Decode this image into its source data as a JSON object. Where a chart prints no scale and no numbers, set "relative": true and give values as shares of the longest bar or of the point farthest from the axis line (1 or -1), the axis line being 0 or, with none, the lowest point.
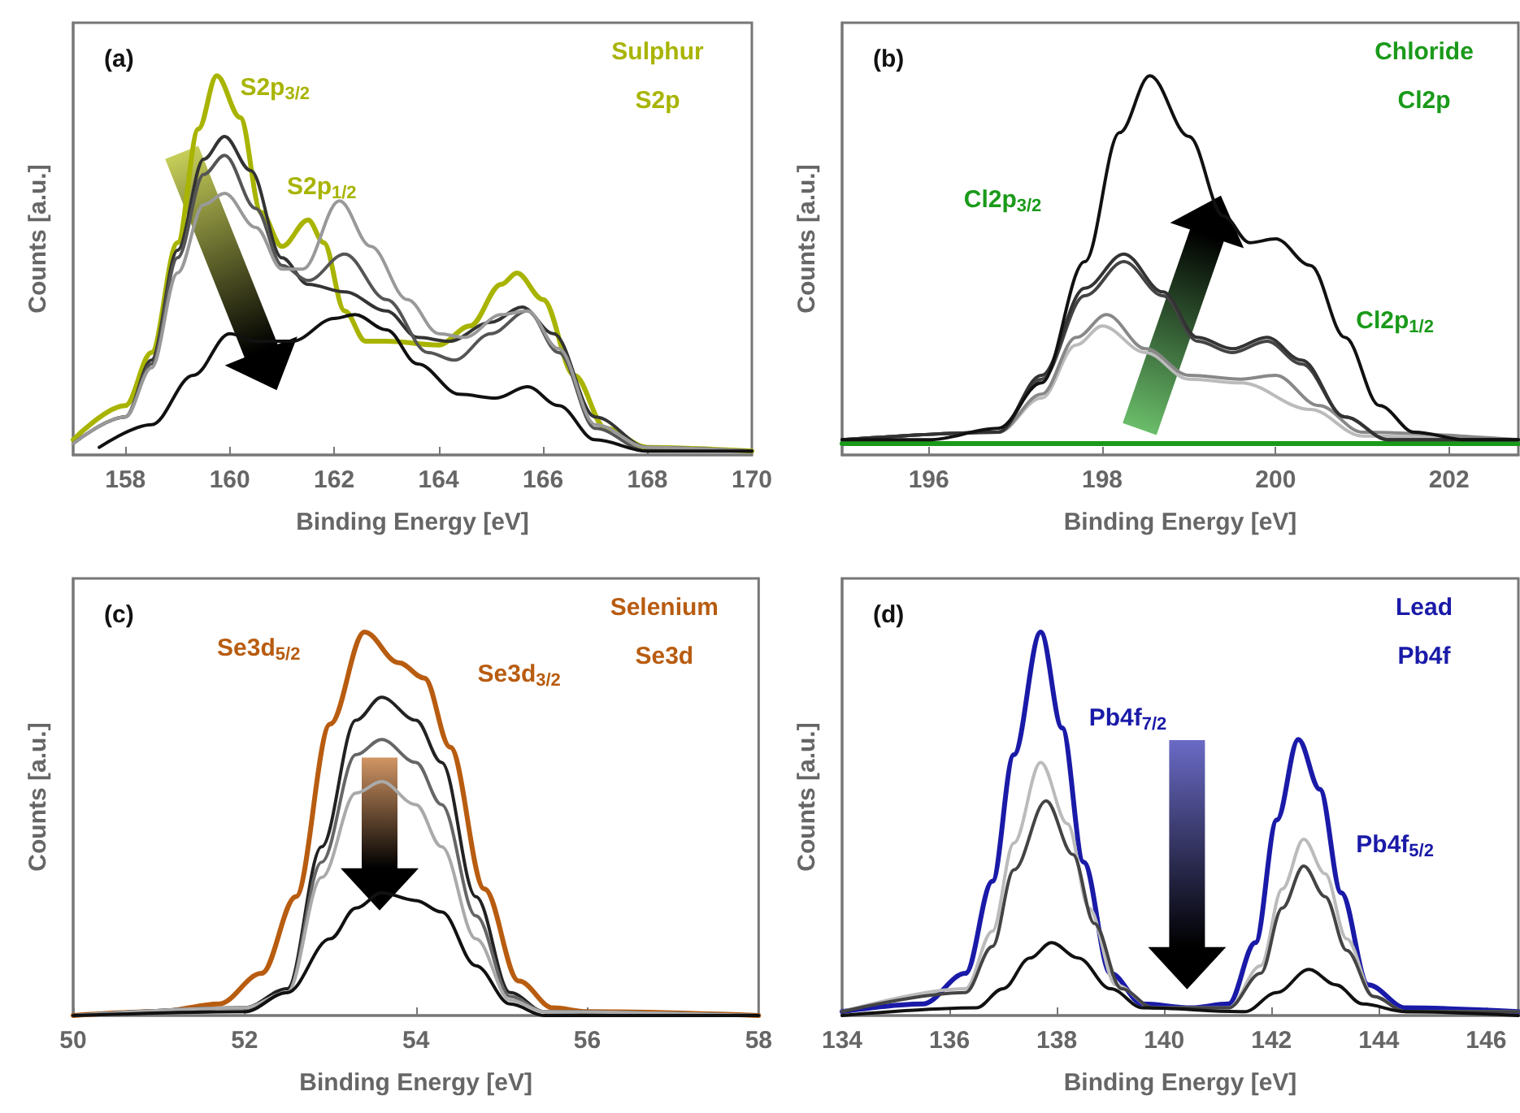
{
  "chart_data": [
    {
      "type": "line",
      "title": "(a)",
      "xlabel": "Binding Energy [eV]",
      "ylabel": "Counts [a.u.]",
      "relative": true,
      "marker": "none",
      "line_style": "solid",
      "xlim": [
        157,
        170
      ],
      "xticks": [
        158,
        160,
        162,
        164,
        166,
        168,
        170
      ],
      "annotations": [
        "Sulphur",
        "S2p",
        "S2p$_{3/2}$",
        "S2p$_{1/2}$"
      ],
      "series": [
        {
          "color": "#a8b400",
          "x": [
            157,
            158,
            158.5,
            159,
            159.4,
            159.75,
            160.2,
            160.6,
            161,
            161.5,
            161.8,
            162.2,
            162.6,
            163,
            164,
            164.6,
            165.2,
            165.5,
            166,
            166.6,
            167.2,
            168,
            170
          ],
          "values": [
            0.04,
            0.13,
            0.27,
            0.56,
            0.86,
            1.0,
            0.89,
            0.64,
            0.55,
            0.62,
            0.56,
            0.38,
            0.3,
            0.3,
            0.29,
            0.34,
            0.45,
            0.48,
            0.41,
            0.21,
            0.07,
            0.02,
            0.01
          ]
        },
        {
          "color": "#333333",
          "x": [
            157,
            158,
            158.5,
            159,
            159.5,
            159.9,
            160.4,
            161,
            161.5,
            162.2,
            163,
            163.6,
            164.2,
            165,
            165.6,
            166.2,
            167,
            168,
            170
          ],
          "values": [
            0.03,
            0.1,
            0.25,
            0.54,
            0.78,
            0.84,
            0.75,
            0.52,
            0.45,
            0.43,
            0.38,
            0.31,
            0.3,
            0.35,
            0.39,
            0.32,
            0.1,
            0.02,
            0.01
          ]
        },
        {
          "color": "#555555",
          "x": [
            157,
            158,
            158.5,
            159,
            159.5,
            159.9,
            160.5,
            161,
            161.5,
            162.2,
            163,
            163.8,
            164.3,
            165,
            165.7,
            166.3,
            167,
            168,
            170
          ],
          "values": [
            0.03,
            0.1,
            0.24,
            0.52,
            0.74,
            0.79,
            0.65,
            0.5,
            0.46,
            0.53,
            0.41,
            0.27,
            0.25,
            0.32,
            0.38,
            0.27,
            0.07,
            0.01,
            0.01
          ]
        },
        {
          "color": "#999999",
          "x": [
            157,
            158,
            158.5,
            159,
            159.5,
            159.9,
            160.5,
            161,
            161.4,
            162.1,
            162.7,
            163.4,
            164,
            164.5,
            165.2,
            165.7,
            166.3,
            167,
            168,
            170
          ],
          "values": [
            0.03,
            0.1,
            0.23,
            0.48,
            0.66,
            0.69,
            0.6,
            0.49,
            0.49,
            0.67,
            0.55,
            0.41,
            0.32,
            0.31,
            0.37,
            0.38,
            0.28,
            0.08,
            0.02,
            0.01
          ]
        },
        {
          "color": "#111111",
          "x": [
            157.5,
            158.5,
            159.3,
            160,
            160.5,
            161.2,
            162,
            162.4,
            163,
            163.6,
            164.4,
            165.1,
            165.7,
            166.3,
            167,
            168,
            170
          ],
          "values": [
            0.02,
            0.08,
            0.21,
            0.32,
            0.3,
            0.3,
            0.36,
            0.37,
            0.33,
            0.24,
            0.16,
            0.15,
            0.18,
            0.13,
            0.04,
            0.01,
            0.01
          ]
        }
      ]
    },
    {
      "type": "line",
      "title": "(b)",
      "xlabel": "Binding Energy [eV]",
      "ylabel": "Counts [a.u.]",
      "relative": true,
      "marker": "none",
      "line_style": "solid",
      "xlim": [
        195,
        202.8
      ],
      "xticks": [
        196,
        198,
        200,
        202
      ],
      "annotations": [
        "Chloride",
        "Cl2p",
        "Cl2p$_{3/2}$",
        "Cl2p$_{1/2}$"
      ],
      "series": [
        {
          "color": "#1a9a1a",
          "x": [
            195,
            202.8
          ],
          "values": [
            0.03,
            0.03
          ]
        },
        {
          "color": "#bbbbbb",
          "x": [
            195,
            196.8,
            197.3,
            197.7,
            198,
            198.5,
            199,
            199.6,
            200.4,
            201,
            202.8
          ],
          "values": [
            0.04,
            0.06,
            0.15,
            0.29,
            0.34,
            0.27,
            0.2,
            0.19,
            0.12,
            0.05,
            0.04
          ]
        },
        {
          "color": "#888888",
          "x": [
            195,
            196.8,
            197.3,
            197.7,
            198.05,
            198.5,
            199,
            199.6,
            200,
            200.5,
            201,
            202.8
          ],
          "values": [
            0.04,
            0.06,
            0.16,
            0.31,
            0.37,
            0.28,
            0.21,
            0.2,
            0.21,
            0.13,
            0.06,
            0.04
          ]
        },
        {
          "color": "#444444",
          "x": [
            195,
            196.8,
            197.3,
            197.8,
            198.25,
            198.7,
            199.1,
            199.5,
            199.9,
            200.3,
            200.8,
            201.3,
            202.8
          ],
          "values": [
            0.04,
            0.06,
            0.2,
            0.42,
            0.51,
            0.42,
            0.3,
            0.27,
            0.3,
            0.24,
            0.1,
            0.04,
            0.04
          ]
        },
        {
          "color": "#333333",
          "x": [
            195,
            196.8,
            197.3,
            197.8,
            198.25,
            198.7,
            199.1,
            199.5,
            199.9,
            200.3,
            200.8,
            201.3,
            202.8
          ],
          "values": [
            0.04,
            0.06,
            0.21,
            0.44,
            0.53,
            0.43,
            0.31,
            0.28,
            0.31,
            0.25,
            0.1,
            0.04,
            0.04
          ]
        },
        {
          "color": "#111111",
          "x": [
            195,
            196,
            196.8,
            197.3,
            197.8,
            198.2,
            198.55,
            199,
            199.4,
            199.7,
            200,
            200.4,
            200.8,
            201.2,
            201.6,
            202.2,
            202.8
          ],
          "values": [
            0.04,
            0.04,
            0.07,
            0.19,
            0.51,
            0.85,
            1.0,
            0.84,
            0.63,
            0.56,
            0.57,
            0.5,
            0.31,
            0.13,
            0.06,
            0.04,
            0.04
          ]
        }
      ]
    },
    {
      "type": "line",
      "title": "(c)",
      "xlabel": "Binding Energy [eV]",
      "ylabel": "Counts [a.u.]",
      "relative": true,
      "marker": "none",
      "line_style": "solid",
      "xlim": [
        50,
        58
      ],
      "xticks": [
        50,
        52,
        54,
        56,
        58
      ],
      "annotations": [
        "Selenium",
        "Se3d",
        "Se3d$_{5/2}$",
        "Se3d$_{3/2}$"
      ],
      "series": [
        {
          "color": "#b85c10",
          "x": [
            50,
            51,
            51.7,
            52.2,
            52.6,
            53,
            53.4,
            53.8,
            54.1,
            54.4,
            54.8,
            55.2,
            55.6,
            56,
            58
          ],
          "values": [
            0,
            0.01,
            0.03,
            0.11,
            0.31,
            0.76,
            1.0,
            0.92,
            0.88,
            0.7,
            0.33,
            0.09,
            0.02,
            0.01,
            0
          ]
        },
        {
          "color": "#222222",
          "x": [
            50,
            52,
            52.5,
            52.9,
            53.3,
            53.6,
            54,
            54.3,
            54.7,
            55.1,
            55.5,
            58
          ],
          "values": [
            0,
            0.02,
            0.07,
            0.44,
            0.77,
            0.83,
            0.77,
            0.66,
            0.31,
            0.06,
            0.01,
            0
          ]
        },
        {
          "color": "#666666",
          "x": [
            50,
            52,
            52.5,
            52.9,
            53.3,
            53.6,
            54,
            54.3,
            54.7,
            55.1,
            55.5,
            58
          ],
          "values": [
            0,
            0.02,
            0.06,
            0.4,
            0.68,
            0.72,
            0.66,
            0.55,
            0.26,
            0.05,
            0.01,
            0
          ]
        },
        {
          "color": "#aaaaaa",
          "x": [
            50,
            52,
            52.5,
            52.9,
            53.3,
            53.6,
            54,
            54.3,
            54.7,
            55.1,
            55.5,
            58
          ],
          "values": [
            0,
            0.02,
            0.06,
            0.36,
            0.58,
            0.61,
            0.55,
            0.44,
            0.2,
            0.04,
            0.01,
            0
          ]
        },
        {
          "color": "#111111",
          "x": [
            50,
            52,
            52.5,
            53,
            53.3,
            53.6,
            54,
            54.3,
            54.7,
            55.1,
            55.5,
            58
          ],
          "values": [
            0,
            0.01,
            0.06,
            0.2,
            0.28,
            0.32,
            0.3,
            0.27,
            0.13,
            0.03,
            0,
            0
          ]
        }
      ]
    },
    {
      "type": "line",
      "title": "(d)",
      "xlabel": "Binding Energy [eV]",
      "ylabel": "Counts [a.u.]",
      "relative": true,
      "marker": "none",
      "line_style": "solid",
      "xlim": [
        134,
        146.6
      ],
      "xticks": [
        134,
        136,
        138,
        140,
        142,
        144,
        146
      ],
      "annotations": [
        "Lead",
        "Pb4f",
        "Pb4f$_{7/2}$",
        "Pb4f$_{5/2}$"
      ],
      "series": [
        {
          "color": "#1a1aa8",
          "x": [
            134,
            135.5,
            136.3,
            136.8,
            137.2,
            137.7,
            138.1,
            138.5,
            139,
            139.6,
            140.5,
            141.2,
            141.7,
            142.1,
            142.5,
            142.9,
            143.3,
            143.8,
            144.5,
            146.6
          ],
          "values": [
            0.01,
            0.03,
            0.11,
            0.35,
            0.68,
            1.0,
            0.75,
            0.4,
            0.11,
            0.03,
            0.02,
            0.03,
            0.19,
            0.51,
            0.72,
            0.59,
            0.32,
            0.08,
            0.02,
            0.01
          ]
        },
        {
          "color": "#bbbbbb",
          "x": [
            134,
            136.3,
            136.8,
            137.2,
            137.7,
            138.2,
            138.6,
            139.1,
            139.8,
            141.2,
            141.8,
            142.2,
            142.6,
            143,
            143.4,
            143.9,
            144.5,
            146.6
          ],
          "values": [
            0.01,
            0.07,
            0.22,
            0.45,
            0.66,
            0.5,
            0.28,
            0.08,
            0.02,
            0.02,
            0.13,
            0.33,
            0.46,
            0.37,
            0.2,
            0.05,
            0.01,
            0.01
          ]
        },
        {
          "color": "#444444",
          "x": [
            134,
            136.3,
            136.8,
            137.2,
            137.8,
            138.3,
            138.7,
            139.2,
            139.8,
            141.2,
            141.8,
            142.2,
            142.6,
            143,
            143.4,
            143.9,
            144.5,
            146.6
          ],
          "values": [
            0.01,
            0.06,
            0.18,
            0.38,
            0.56,
            0.42,
            0.24,
            0.07,
            0.02,
            0.02,
            0.11,
            0.28,
            0.39,
            0.31,
            0.17,
            0.05,
            0.01,
            0.01
          ]
        },
        {
          "color": "#111111",
          "x": [
            134,
            136.5,
            137,
            137.5,
            137.9,
            138.4,
            139,
            139.6,
            141.5,
            142.1,
            142.7,
            143.2,
            143.7,
            144.5,
            146.6
          ],
          "values": [
            0,
            0.02,
            0.07,
            0.15,
            0.19,
            0.15,
            0.07,
            0.02,
            0.01,
            0.06,
            0.12,
            0.08,
            0.03,
            0.01,
            0
          ]
        }
      ]
    }
  ]
}
